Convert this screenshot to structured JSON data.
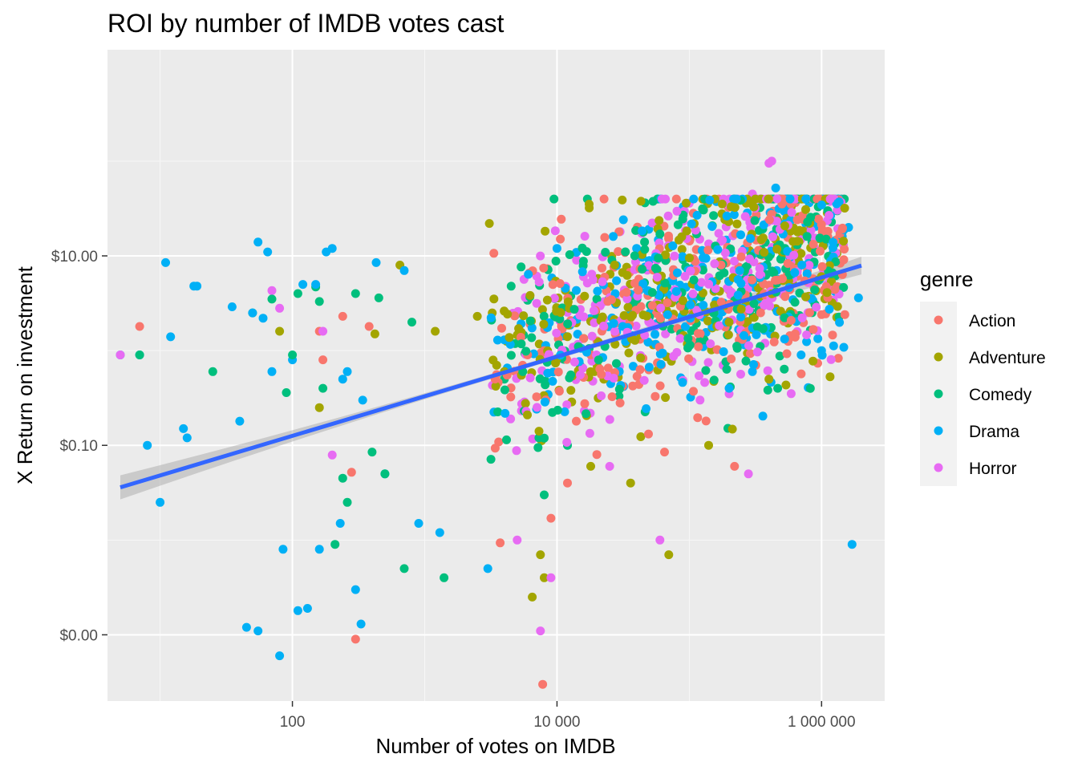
{
  "chart_data": {
    "type": "scatter",
    "title": "ROI by number of IMDB votes cast",
    "xlabel": "Number of votes on IMDB",
    "ylabel": "X Return on investment",
    "x_scale": "log10",
    "y_scale": "log10",
    "xlim": [
      4,
      3000000
    ],
    "ylim": [
      0.0002,
      1500
    ],
    "x_ticks": [
      {
        "value": 100,
        "label": "100"
      },
      {
        "value": 10000,
        "label": "10 000"
      },
      {
        "value": 1000000,
        "label": "1 000 000"
      }
    ],
    "y_ticks": [
      {
        "value": 10,
        "label": "$10.00"
      },
      {
        "value": 0.1,
        "label": "$0.10"
      },
      {
        "value": 0.001,
        "label": "$0.00"
      }
    ],
    "grid": true,
    "legend": {
      "title": "genre",
      "position": "right",
      "entries": [
        {
          "name": "Action",
          "color": "#F8766D"
        },
        {
          "name": "Adventure",
          "color": "#A3A500"
        },
        {
          "name": "Comedy",
          "color": "#00BF7D"
        },
        {
          "name": "Drama",
          "color": "#00B0F6"
        },
        {
          "name": "Horror",
          "color": "#E76BF3"
        }
      ]
    },
    "trend_line": {
      "method": "linear regression on log scales",
      "points": [
        [
          5,
          0.036
        ],
        [
          2000000,
          7.9
        ]
      ],
      "color": "#3366FF",
      "band_color": "#999999"
    },
    "series": [
      {
        "name": "Action",
        "points": [
          [
            7,
            1.8
          ],
          [
            160,
            1.6
          ],
          [
            170,
            0.8
          ],
          [
            240,
            2.3
          ],
          [
            280,
            0.052
          ],
          [
            300,
            0.0009
          ],
          [
            380,
            1.8
          ],
          [
            4200,
            0.55
          ],
          [
            5500,
            0.7
          ],
          [
            6000,
            0.9
          ],
          [
            7800,
            0.0003
          ],
          [
            8000,
            1.0
          ],
          [
            9000,
            0.017
          ],
          [
            12000,
            0.04
          ],
          [
            14000,
            0.18
          ],
          [
            20000,
            0.08
          ],
          [
            30000,
            0.28
          ],
          [
            65000,
            0.085
          ],
          [
            220000,
            0.06
          ],
          [
            1000000,
            2.4
          ],
          [
            1500000,
            2.4
          ]
        ]
      },
      {
        "name": "Adventure",
        "points": [
          [
            80,
            1.6
          ],
          [
            160,
            0.25
          ],
          [
            420,
            1.5
          ],
          [
            650,
            8.0
          ],
          [
            1200,
            1.6
          ],
          [
            2500,
            2.3
          ],
          [
            3500,
            0.7
          ],
          [
            4000,
            0.6
          ],
          [
            6500,
            0.0025
          ],
          [
            7500,
            0.007
          ],
          [
            8000,
            0.004
          ],
          [
            18000,
            0.06
          ],
          [
            36000,
            0.04
          ],
          [
            70000,
            0.007
          ],
          [
            140000,
            0.1
          ],
          [
            200000,
            2.0
          ],
          [
            400000,
            0.5
          ],
          [
            1100000,
            4.1
          ],
          [
            1200000,
            3.2
          ]
        ]
      },
      {
        "name": "Comedy",
        "points": [
          [
            7,
            0.9
          ],
          [
            25,
            0.6
          ],
          [
            50,
            2.5
          ],
          [
            70,
            3.5
          ],
          [
            90,
            0.36
          ],
          [
            100,
            0.9
          ],
          [
            110,
            4.0
          ],
          [
            150,
            4.7
          ],
          [
            170,
            0.4
          ],
          [
            160,
            3.3
          ],
          [
            210,
            0.009
          ],
          [
            260,
            0.025
          ],
          [
            240,
            0.045
          ],
          [
            300,
            4.0
          ],
          [
            400,
            0.085
          ],
          [
            450,
            3.6
          ],
          [
            500,
            0.05
          ],
          [
            700,
            0.005
          ],
          [
            800,
            2.0
          ],
          [
            1400,
            0.004
          ],
          [
            3200,
            2.1
          ],
          [
            4000,
            0.5
          ],
          [
            6000,
            3.4
          ],
          [
            8000,
            0.03
          ],
          [
            12000,
            0.1
          ],
          [
            20000,
            3.5
          ],
          [
            60000,
            17
          ],
          [
            90000,
            27
          ],
          [
            180000,
            38
          ]
        ]
      },
      {
        "name": "Drama",
        "points": [
          [
            5,
            0.9
          ],
          [
            7,
            0.9
          ],
          [
            8,
            0.1
          ],
          [
            10,
            0.025
          ],
          [
            11,
            8.5
          ],
          [
            12,
            1.4
          ],
          [
            15,
            0.15
          ],
          [
            16,
            0.12
          ],
          [
            18,
            4.8
          ],
          [
            19,
            4.8
          ],
          [
            35,
            2.9
          ],
          [
            40,
            0.18
          ],
          [
            45,
            0.0012
          ],
          [
            50,
            2.5
          ],
          [
            55,
            0.0011
          ],
          [
            55,
            14
          ],
          [
            60,
            2.2
          ],
          [
            65,
            11
          ],
          [
            70,
            0.6
          ],
          [
            80,
            0.0006
          ],
          [
            85,
            0.008
          ],
          [
            100,
            0.8
          ],
          [
            110,
            0.0018
          ],
          [
            120,
            5.0
          ],
          [
            130,
            0.0019
          ],
          [
            150,
            5.0
          ],
          [
            160,
            0.008
          ],
          [
            180,
            11
          ],
          [
            200,
            12
          ],
          [
            230,
            0.015
          ],
          [
            240,
            0.5
          ],
          [
            260,
            0.6
          ],
          [
            300,
            0.003
          ],
          [
            330,
            0.0013
          ],
          [
            340,
            0.3
          ],
          [
            430,
            8.5
          ],
          [
            500,
            0.05
          ],
          [
            700,
            7.0
          ],
          [
            900,
            0.015
          ],
          [
            1300,
            0.012
          ],
          [
            3000,
            0.005
          ],
          [
            10000,
            12
          ],
          [
            40000,
            12
          ],
          [
            90000,
            33
          ],
          [
            200000,
            0.4
          ],
          [
            300000,
            0.6
          ],
          [
            450000,
            52
          ],
          [
            700000,
            0.9
          ],
          [
            1000000,
            1.0
          ],
          [
            1600000,
            20
          ],
          [
            1700000,
            0.009
          ],
          [
            1900000,
            3.6
          ]
        ]
      },
      {
        "name": "Horror",
        "points": [
          [
            5,
            0.9
          ],
          [
            70,
            4.3
          ],
          [
            80,
            2.8
          ],
          [
            170,
            1.6
          ],
          [
            200,
            0.079
          ],
          [
            5000,
            0.01
          ],
          [
            7500,
            0.0011
          ],
          [
            9000,
            0.004
          ],
          [
            25000,
            0.06
          ],
          [
            30000,
            18
          ],
          [
            60000,
            0.01
          ],
          [
            100000,
            36
          ],
          [
            120000,
            15
          ],
          [
            180000,
            0.7
          ],
          [
            200000,
            0.35
          ],
          [
            280000,
            0.05
          ],
          [
            300000,
            45
          ],
          [
            400000,
            95
          ],
          [
            420000,
            100
          ],
          [
            460000,
            40
          ]
        ]
      }
    ],
    "dense_cluster": {
      "description": "Most of the points are in a band that rises with vote count",
      "x_range": [
        3000,
        1500000
      ],
      "log_y_mean_slope": 0.5,
      "log_y_intercept_at_x_1e4": 0.1,
      "log_y_spread": 0.55,
      "count_per_genre": 260
    }
  }
}
